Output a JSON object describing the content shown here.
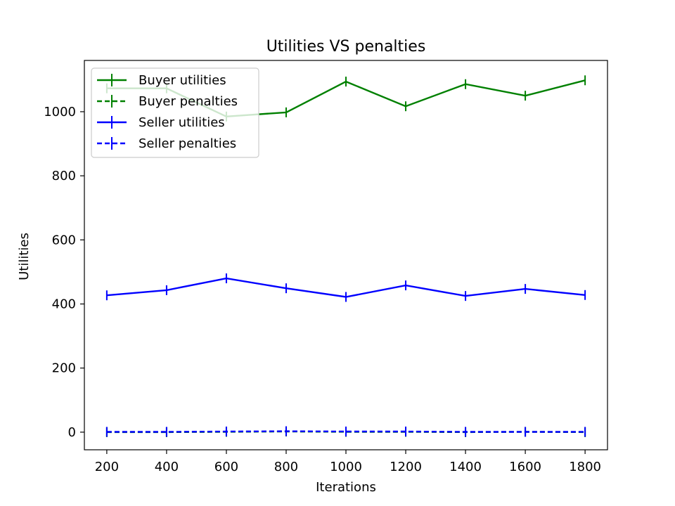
{
  "chart_data": {
    "type": "line",
    "title": "Utilities VS penalties",
    "xlabel": "Iterations",
    "ylabel": "Utilities",
    "x": [
      200,
      400,
      600,
      800,
      1000,
      1200,
      1400,
      1600,
      1800
    ],
    "xlim": [
      125,
      1875
    ],
    "ylim": [
      -55,
      1160
    ],
    "xticks": [
      200,
      400,
      600,
      800,
      1000,
      1200,
      1400,
      1600,
      1800
    ],
    "yticks": [
      0,
      200,
      400,
      600,
      800,
      1000
    ],
    "grid": false,
    "legend_position": "upper left",
    "series": [
      {
        "name": "Buyer utilities",
        "color": "#008000",
        "style": "solid",
        "values": [
          1073,
          1073,
          985,
          998,
          1094,
          1017,
          1086,
          1050,
          1098
        ]
      },
      {
        "name": "Buyer penalties",
        "color": "#008000",
        "style": "dashed",
        "values": [
          0,
          0,
          1,
          2,
          1,
          1,
          0,
          1,
          0
        ]
      },
      {
        "name": "Seller utilities",
        "color": "#0000ff",
        "style": "solid",
        "values": [
          427,
          443,
          480,
          449,
          422,
          458,
          425,
          447,
          428
        ]
      },
      {
        "name": "Seller penalties",
        "color": "#0000ff",
        "style": "dashed",
        "values": [
          1,
          1,
          2,
          3,
          2,
          2,
          1,
          1,
          1
        ]
      }
    ]
  }
}
